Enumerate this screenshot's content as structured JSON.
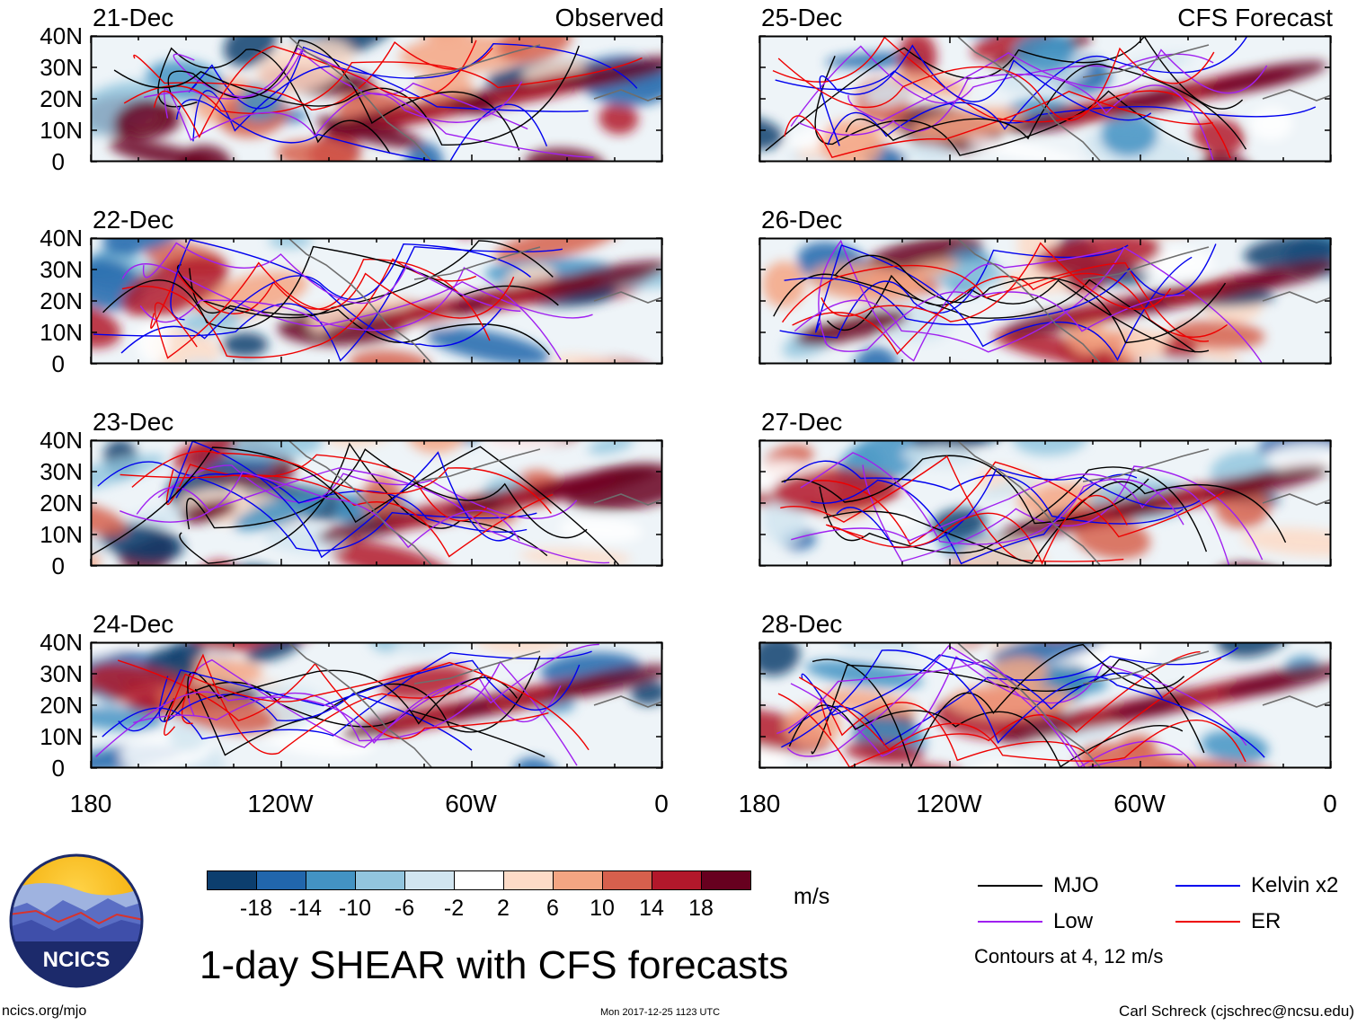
{
  "panels": [
    {
      "date": "21-Dec",
      "label": "Observed"
    },
    {
      "date": "22-Dec",
      "label": ""
    },
    {
      "date": "23-Dec",
      "label": ""
    },
    {
      "date": "24-Dec",
      "label": ""
    },
    {
      "date": "25-Dec",
      "label": "CFS Forecast"
    },
    {
      "date": "26-Dec",
      "label": ""
    },
    {
      "date": "27-Dec",
      "label": ""
    },
    {
      "date": "28-Dec",
      "label": ""
    }
  ],
  "y_axis": {
    "ticks": [
      "40N",
      "30N",
      "20N",
      "10N",
      "0"
    ]
  },
  "x_axis": {
    "ticks": [
      "180",
      "120W",
      "60W",
      "0"
    ]
  },
  "colorbar": {
    "colors": [
      "#0c3e6e",
      "#2166ac",
      "#4393c3",
      "#92c5de",
      "#d1e5f0",
      "#ffffff",
      "#fddbc7",
      "#f4a582",
      "#d6604d",
      "#b2182b",
      "#67001f"
    ],
    "ticks": [
      "-18",
      "-14",
      "-10",
      "-6",
      "-2",
      "2",
      "6",
      "10",
      "14",
      "18"
    ],
    "units": "m/s"
  },
  "title": "1-day SHEAR with CFS forecasts",
  "legend": {
    "items": [
      {
        "label": "MJO",
        "color": "#000000"
      },
      {
        "label": "Kelvin x2",
        "color": "#0000ee"
      },
      {
        "label": "Low",
        "color": "#a020f0"
      },
      {
        "label": "ER",
        "color": "#ee0000"
      }
    ],
    "note": "Contours at 4, 12 m/s"
  },
  "logo": {
    "text": "NCICS"
  },
  "footer": {
    "left": "ncics.org/mjo",
    "middle": "Mon 2017-12-25 1123 UTC",
    "right": "Carl Schreck (cjschrec@ncsu.edu)"
  }
}
